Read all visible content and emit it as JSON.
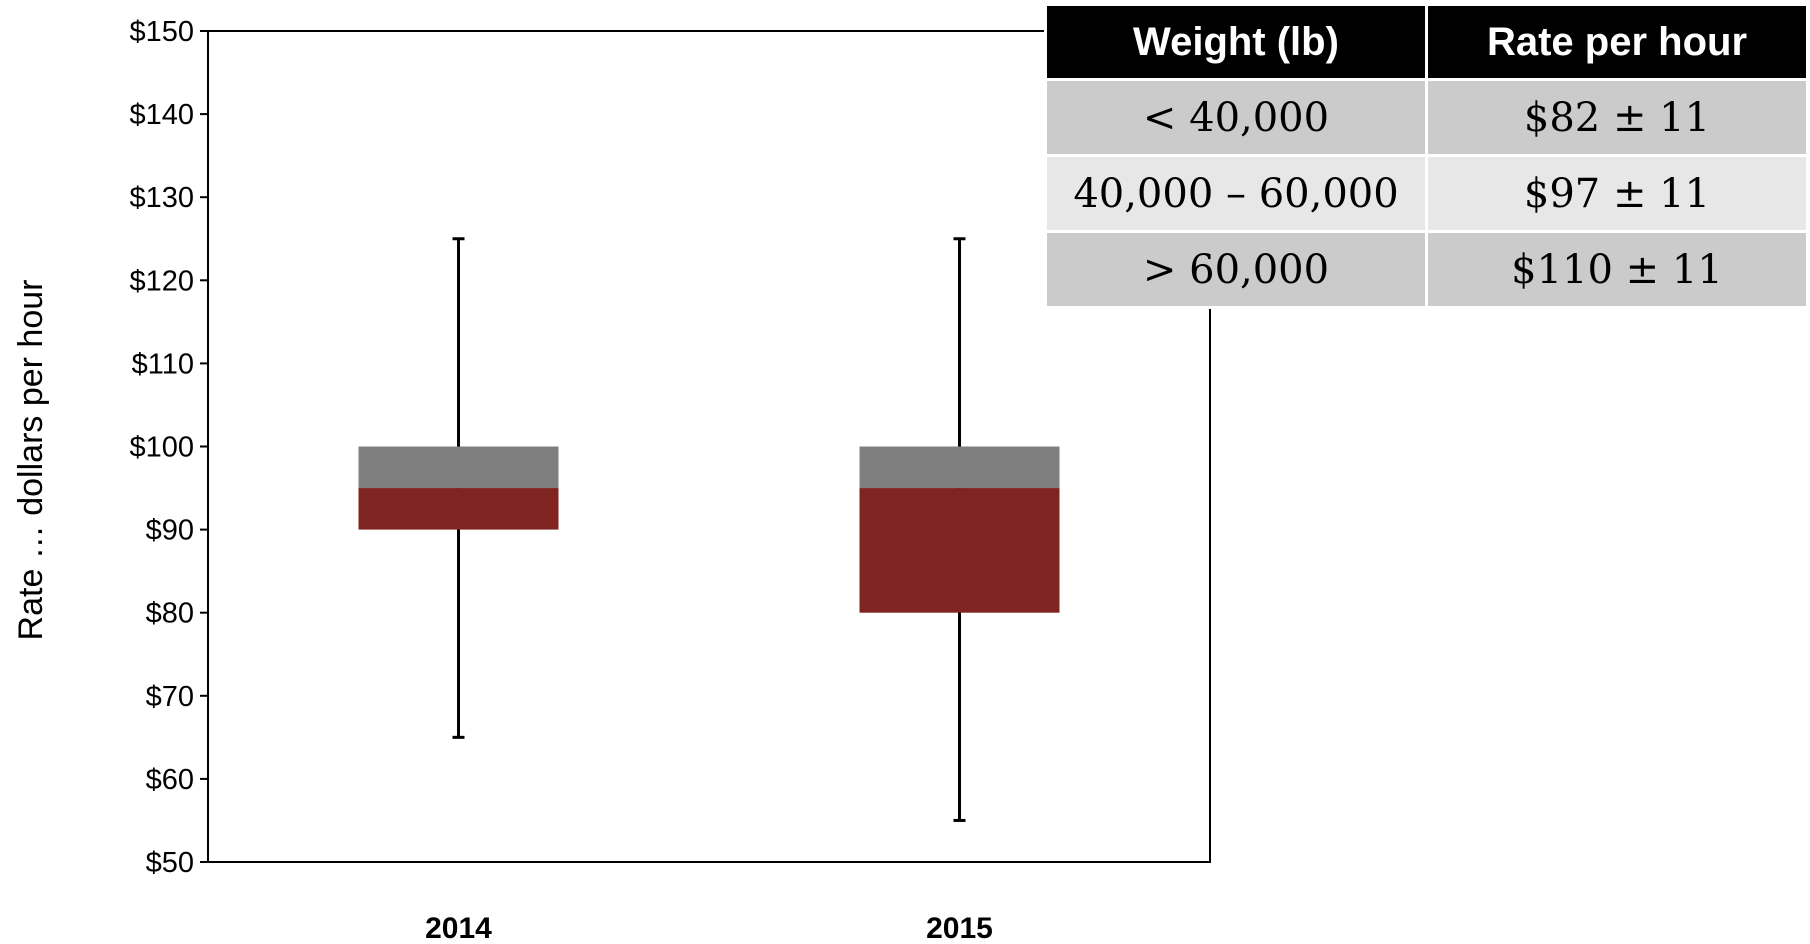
{
  "chart_data": {
    "type": "box",
    "title": "",
    "xlabel": "",
    "ylabel": "Rate … dollars per hour",
    "ylim": [
      50,
      150
    ],
    "y_ticks": [
      "$50",
      "$60",
      "$70",
      "$80",
      "$90",
      "$100",
      "$110",
      "$120",
      "$130",
      "$140",
      "$150"
    ],
    "y_tick_values": [
      50,
      60,
      70,
      80,
      90,
      100,
      110,
      120,
      130,
      140,
      150
    ],
    "grid": false,
    "categories": [
      "2014",
      "2015"
    ],
    "boxes": [
      {
        "category": "2014",
        "min": 65,
        "q1": 90,
        "median": 95,
        "q3": 100,
        "max": 125
      },
      {
        "category": "2015",
        "min": 55,
        "q1": 80,
        "median": 95,
        "q3": 100,
        "max": 125
      }
    ],
    "colors": {
      "lower_box": "#7f2420",
      "upper_box": "#7f7f7f",
      "whisker": "#000000"
    }
  },
  "table": {
    "headers": [
      "Weight (lb)",
      "Rate per hour"
    ],
    "rows": [
      {
        "weight": "< 40,000",
        "rate": "$82 ± 11"
      },
      {
        "weight": "40,000 – 60,000",
        "rate": "$97 ± 11"
      },
      {
        "weight": "> 60,000",
        "rate": "$110 ± 11"
      }
    ]
  }
}
